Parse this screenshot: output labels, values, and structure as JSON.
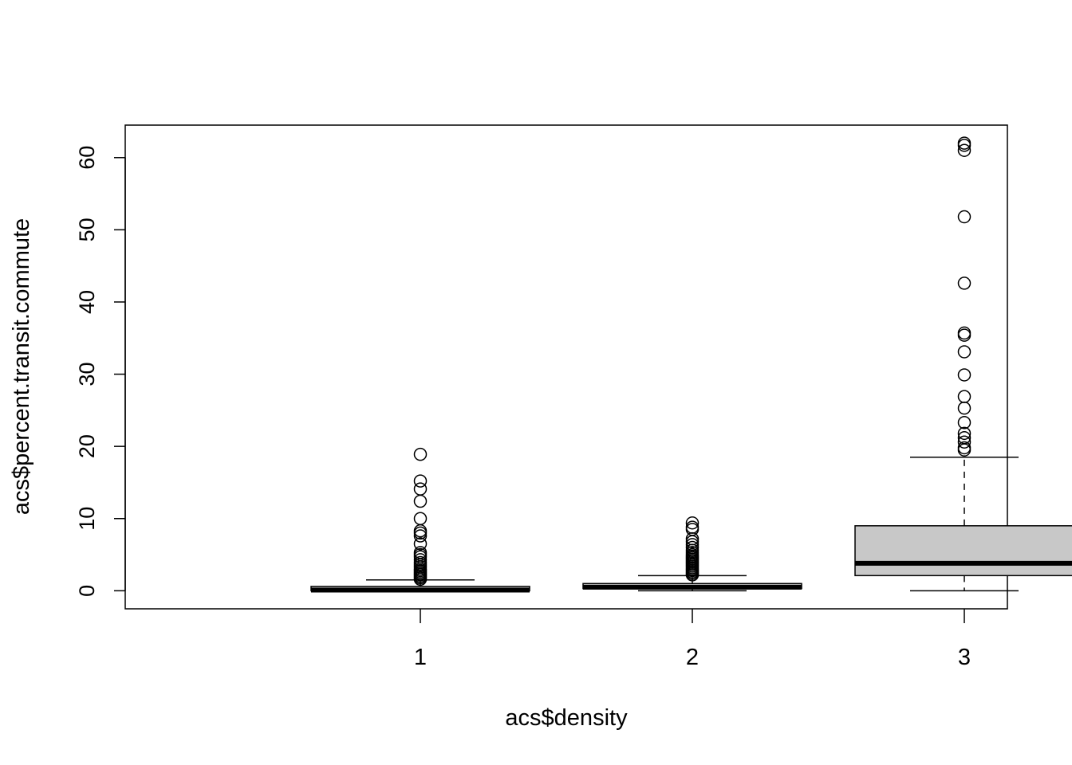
{
  "chart_data": {
    "type": "boxplot",
    "title": "",
    "xlabel": "acs$density",
    "ylabel": "acs$percent.transit.commute",
    "categories": [
      "1",
      "2",
      "3"
    ],
    "ylim": [
      -2.5,
      64.5
    ],
    "yticks": [
      0,
      10,
      20,
      30,
      40,
      50,
      60
    ],
    "box_fill": "#c8c8c8",
    "boxes": [
      {
        "category": "1",
        "lower_whisker": 0,
        "q1": 0,
        "median": 0.1,
        "q3": 0.6,
        "upper_whisker": 1.5,
        "outliers": [
          1.6,
          1.8,
          2.0,
          2.2,
          2.4,
          2.6,
          2.8,
          3.0,
          3.3,
          3.6,
          3.9,
          4.3,
          4.7,
          5.0,
          5.3,
          6.5,
          7.6,
          8.0,
          8.3,
          10.0,
          12.4,
          14.1,
          15.2,
          18.9
        ]
      },
      {
        "category": "2",
        "lower_whisker": 0,
        "q1": 0.3,
        "median": 0.5,
        "q3": 1.0,
        "upper_whisker": 2.1,
        "outliers": [
          2.2,
          2.4,
          2.6,
          2.8,
          3.0,
          3.2,
          3.4,
          3.6,
          3.8,
          4.0,
          4.2,
          4.4,
          4.6,
          4.8,
          5.0,
          5.3,
          5.6,
          6.0,
          6.4,
          6.8,
          7.2,
          8.5,
          8.8,
          9.4
        ]
      },
      {
        "category": "3",
        "lower_whisker": 0,
        "q1": 2.1,
        "median": 3.8,
        "q3": 9.0,
        "upper_whisker": 18.5,
        "outliers": [
          19.5,
          19.8,
          20.6,
          21.2,
          21.8,
          23.3,
          25.3,
          26.9,
          29.9,
          33.1,
          35.4,
          35.7,
          42.6,
          51.8,
          61.0,
          61.7,
          62.0
        ]
      }
    ]
  }
}
